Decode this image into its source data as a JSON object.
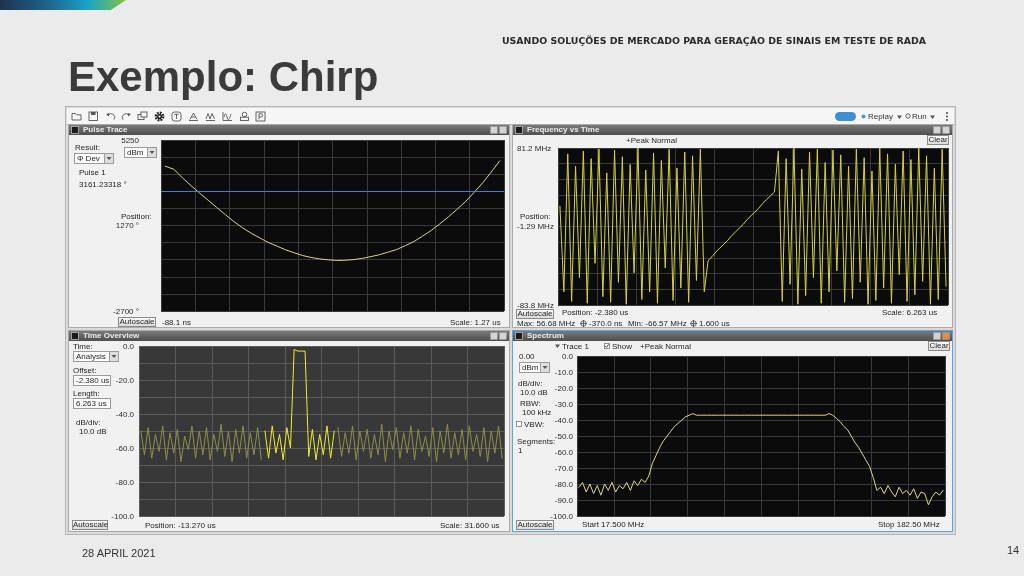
{
  "chart_data": [
    {
      "type": "other",
      "title": "Exemplo: Chirp",
      "subtitle": "USANDO SOLUÇÕES DE MERCADO PARA GERAÇÃO DE SINAIS EM TESTE DE RADA",
      "annotations": [
        "Replay",
        "Run",
        "28 APRIL 2021",
        "14"
      ]
    },
    {
      "type": "line",
      "title": "Pulse Trace",
      "categories": [
        null,
        null,
        null,
        null,
        null,
        null,
        null,
        null,
        null,
        null,
        null,
        null,
        null,
        null,
        null,
        null,
        null,
        null,
        null,
        null,
        null,
        null,
        null,
        null,
        null,
        null,
        null,
        null,
        null,
        null,
        null,
        null,
        null,
        null,
        null,
        null,
        null,
        null,
        null,
        null
      ],
      "series": [
        {
          "color": "#d8d58e",
          "values": [
            4030,
            3890,
            3490,
            3130,
            2780,
            2450,
            2110,
            1780,
            1460,
            1170,
            920,
            700,
            490,
            320,
            150,
            10,
            -120,
            -210,
            -280,
            -320,
            -350,
            -340,
            -310,
            -250,
            -170,
            -80,
            40,
            160,
            340,
            530,
            780,
            1040,
            1350,
            1670,
            2020,
            2380,
            2810,
            3250,
            3750,
            4280
          ]
        }
      ],
      "ylim": [
        -2700,
        5250
      ],
      "yticks": [
        {
          "value": 5250,
          "label": "5250"
        },
        {
          "value": 4455,
          "label": null
        },
        {
          "value": 3660,
          "label": null
        },
        {
          "value": 2865,
          "label": null
        },
        {
          "value": 2070,
          "label": null
        },
        {
          "value": 1270,
          "label": "1270 °"
        },
        {
          "value": 480,
          "label": null
        },
        {
          "value": -315,
          "label": null
        },
        {
          "value": -1110,
          "label": null
        },
        {
          "value": -1905,
          "label": null
        },
        {
          "value": -2700,
          "label": "-2700 °"
        }
      ],
      "grid": true,
      "tick_labels": "y",
      "ref_lines": [
        {
          "axis": "y",
          "value": 2860,
          "color": "#3d7fd9"
        }
      ],
      "annotations": [
        "Result:",
        "Φ Dev",
        "dBm",
        "Pulse 1",
        "3161.23318 °",
        "Position:",
        "Autoscale",
        "-88.1 ns",
        "Scale: 1.27 us"
      ]
    },
    {
      "type": "line",
      "title": "Frequency vs Time",
      "categories": [
        null,
        null,
        null,
        null,
        null,
        null,
        null,
        null,
        null,
        null,
        null,
        null,
        null,
        null,
        null,
        null,
        null,
        null,
        null,
        null,
        null,
        null,
        null,
        null,
        null,
        null,
        null,
        null,
        null,
        null,
        null,
        null,
        null,
        null,
        null,
        null,
        null,
        null,
        null,
        null,
        null,
        null,
        null,
        null,
        null,
        null,
        null,
        null,
        null,
        null,
        null,
        null,
        null,
        null,
        null,
        null,
        null,
        null,
        null,
        null,
        null,
        null,
        null,
        null,
        null,
        null,
        null,
        null,
        null,
        null,
        null,
        null,
        null,
        null,
        null,
        null,
        null,
        null,
        null,
        null,
        null,
        null,
        null,
        null,
        null,
        null,
        null,
        null,
        null,
        null,
        null,
        null,
        null,
        null,
        null,
        null,
        null,
        null,
        null,
        null
      ],
      "series": [
        {
          "color": "#d6d43c",
          "values": [
            20,
            -70,
            75,
            -80,
            62,
            -55,
            78,
            -82,
            70,
            -40,
            80,
            -75,
            55,
            -81,
            79,
            -60,
            72,
            -83,
            64,
            -50,
            81,
            -78,
            58,
            -70,
            76,
            -82,
            68,
            -45,
            80,
            -79,
            60,
            -66,
            77,
            -81,
            73,
            -58,
            80,
            -70,
            -37,
            -33,
            -28,
            -24,
            -20,
            -16,
            -11,
            -7,
            -3,
            1,
            6,
            10,
            14,
            18,
            23,
            27,
            31,
            35,
            78,
            -80,
            70,
            -62,
            81,
            -83,
            59,
            -74,
            77,
            -55,
            80,
            -82,
            66,
            -70,
            79,
            -48,
            74,
            -81,
            62,
            -77,
            80,
            -60,
            71,
            -83,
            57,
            -79,
            81,
            -66,
            75,
            -82,
            64,
            -52,
            78,
            -80,
            69,
            -73,
            81,
            -59,
            73,
            -83,
            60,
            -78,
            80,
            -64
          ]
        }
      ],
      "ylim": [
        -83.8,
        81.2
      ],
      "yticks": [
        {
          "value": 81.2,
          "label": "81.2 MHz"
        },
        {
          "value": 64.7,
          "label": null
        },
        {
          "value": 48.2,
          "label": null
        },
        {
          "value": 31.7,
          "label": null
        },
        {
          "value": 15.2,
          "label": null
        },
        {
          "value": -1.29,
          "label": "-1.29 MHz"
        },
        {
          "value": -17.8,
          "label": null
        },
        {
          "value": -34.3,
          "label": null
        },
        {
          "value": -50.8,
          "label": null
        },
        {
          "value": -67.3,
          "label": null
        },
        {
          "value": -83.8,
          "label": "-83.8 MHz"
        }
      ],
      "grid": true,
      "tick_labels": "y",
      "annotations": [
        "+Peak Normal",
        "Clear",
        "Position:",
        "Autoscale",
        "Position: -2.380 us",
        "Scale: 6.263 us",
        "Max: 56.68 MHz",
        "-370.0 ns",
        "Min: -66.57 MHz",
        "1.600 us"
      ]
    },
    {
      "type": "line",
      "title": "Time Overview",
      "categories": [
        null,
        null,
        null,
        null,
        null,
        null,
        null,
        null,
        null,
        null,
        null,
        null,
        null,
        null,
        null,
        null,
        null,
        null,
        null,
        null,
        null,
        null,
        null,
        null,
        null,
        null,
        null,
        null,
        null,
        null,
        null,
        null,
        null,
        null,
        null,
        null,
        null,
        null,
        null,
        null,
        null,
        null,
        null,
        null,
        null,
        null,
        null,
        null,
        null,
        null,
        null,
        null,
        null,
        null,
        null,
        null,
        null,
        null,
        null,
        null,
        null,
        null,
        null,
        null,
        null,
        null,
        null,
        null,
        null,
        null,
        null,
        null,
        null,
        null,
        null,
        null,
        null,
        null,
        null,
        null,
        null,
        null,
        null,
        null,
        null,
        null,
        null,
        null,
        null,
        null,
        null,
        null,
        null,
        null,
        null,
        null,
        null,
        null,
        null,
        null
      ],
      "series": [
        {
          "color": "#8e8e4e",
          "values": [
            -50,
            -64,
            -48,
            -66,
            -52,
            -62,
            -47,
            -67,
            -51,
            -63,
            -49,
            -68,
            -53,
            -61,
            -47,
            -66,
            -50,
            -64,
            -48,
            -67,
            -52,
            -62,
            -46,
            -65,
            -50,
            -68,
            -49,
            -63,
            -47,
            -66,
            -51,
            -64,
            -48,
            -67,
            null,
            null,
            null,
            null,
            null,
            null,
            null,
            null,
            null,
            null,
            null,
            null,
            null,
            null,
            null,
            null,
            null,
            null,
            null,
            null,
            -48,
            -65,
            -51,
            -63,
            -47,
            -67,
            -50,
            -62,
            -49,
            -66,
            -52,
            -64,
            -46,
            -68,
            -50,
            -61,
            -48,
            -66,
            -51,
            -63,
            -47,
            -67,
            -49,
            -62,
            -53,
            -65,
            -48,
            -68,
            -50,
            -63,
            -46,
            -66,
            -51,
            -64,
            -49,
            -67,
            -47,
            -62,
            -52,
            -65,
            -48,
            -68,
            -50,
            -63,
            -47,
            -66
          ]
        },
        {
          "color": "#eeec2e",
          "values": [
            null,
            null,
            null,
            null,
            null,
            null,
            null,
            null,
            null,
            null,
            null,
            null,
            null,
            null,
            null,
            null,
            null,
            null,
            null,
            null,
            null,
            null,
            null,
            null,
            null,
            null,
            null,
            null,
            null,
            null,
            null,
            null,
            null,
            null,
            -50,
            -66,
            -47,
            -63,
            -52,
            -67,
            -48,
            -60,
            -2,
            -3,
            -3,
            -3,
            -65,
            -49,
            -67,
            -52,
            -64,
            -47,
            -66,
            -50,
            null,
            null,
            null,
            null,
            null,
            null,
            null,
            null,
            null,
            null,
            null,
            null,
            null,
            null,
            null,
            null,
            null,
            null,
            null,
            null,
            null,
            null,
            null,
            null,
            null,
            null,
            null,
            null,
            null,
            null,
            null,
            null,
            null,
            null,
            null,
            null,
            null,
            null,
            null,
            null,
            null,
            null,
            null,
            null,
            null,
            null
          ]
        }
      ],
      "ylim": [
        -100,
        0
      ],
      "yticks": [
        {
          "value": 0,
          "label": "0.0"
        },
        {
          "value": -10,
          "label": null
        },
        {
          "value": -20,
          "label": "-20.0"
        },
        {
          "value": -30,
          "label": null
        },
        {
          "value": -40,
          "label": "-40.0"
        },
        {
          "value": -50,
          "label": null
        },
        {
          "value": -60,
          "label": "-60.0"
        },
        {
          "value": -70,
          "label": null
        },
        {
          "value": -80,
          "label": "-80.0"
        },
        {
          "value": -90,
          "label": null
        },
        {
          "value": -100,
          "label": "-100.0"
        }
      ],
      "grid": true,
      "tick_labels": "y",
      "annotations": [
        "Time:",
        "Analysis",
        "Offset:",
        "-2.380 us",
        "Length:",
        "6.263 us",
        "dB/div:",
        "10.0 dB",
        "Autoscale",
        "Position: -13.270 us",
        "Scale: 31.600 us"
      ]
    },
    {
      "type": "line",
      "title": "Spectrum",
      "categories": [
        null,
        null,
        null,
        null,
        null,
        null,
        null,
        null,
        null,
        null,
        null,
        null,
        null,
        null,
        null,
        null,
        null,
        null,
        null,
        null,
        null,
        null,
        null,
        null,
        null,
        null,
        null,
        null,
        null,
        null,
        null,
        null,
        null,
        null,
        null,
        null,
        null,
        null,
        null,
        null,
        null,
        null,
        null,
        null,
        null,
        null,
        null,
        null,
        null,
        null,
        null,
        null,
        null,
        null,
        null,
        null,
        null,
        null,
        null,
        null,
        null,
        null,
        null,
        null,
        null,
        null,
        null,
        null,
        null,
        null,
        null,
        null,
        null,
        null,
        null,
        null,
        null,
        null,
        null,
        null,
        null,
        null,
        null,
        null,
        null,
        null,
        null,
        null,
        null,
        null,
        null,
        null,
        null,
        null,
        null,
        null,
        null,
        null,
        null,
        null
      ],
      "series": [
        {
          "color": "#d9d88a",
          "values": [
            -82,
            -79,
            -85,
            -80,
            -86,
            -81,
            -87,
            -80,
            -84,
            -79,
            -85,
            -81,
            -83,
            -79,
            -84,
            -78,
            -81,
            -77,
            -79,
            -75,
            -67,
            -62,
            -57,
            -53,
            -50,
            -47,
            -44,
            -42,
            -40,
            -38,
            -37,
            -36,
            -37,
            -37,
            -37,
            -37,
            -37,
            -37,
            -37,
            -37,
            -37,
            -37,
            -37,
            -37,
            -37,
            -37,
            -37,
            -37,
            -37,
            -37,
            -37,
            -37,
            -37,
            -37,
            -37,
            -37,
            -37,
            -37,
            -37,
            -37,
            -37,
            -37,
            -37,
            -37,
            -37,
            -37,
            -37,
            -37,
            -36,
            -37,
            -39,
            -41,
            -44,
            -46,
            -50,
            -54,
            -57,
            -61,
            -65,
            -69,
            -76,
            -84,
            -82,
            -86,
            -81,
            -85,
            -88,
            -82,
            -86,
            -84,
            -87,
            -83,
            -89,
            -85,
            -86,
            -93,
            -88,
            -85,
            -87,
            -84
          ]
        }
      ],
      "ylim": [
        -100,
        0
      ],
      "yticks": [
        {
          "value": 0,
          "label": "0.0"
        },
        {
          "value": -10,
          "label": "-10.0"
        },
        {
          "value": -20,
          "label": "-20.0"
        },
        {
          "value": -30,
          "label": "-30.0"
        },
        {
          "value": -40,
          "label": "-40.0"
        },
        {
          "value": -50,
          "label": "-50.0"
        },
        {
          "value": -60,
          "label": "-60.0"
        },
        {
          "value": -70,
          "label": "-70.0"
        },
        {
          "value": -80,
          "label": "-80.0"
        },
        {
          "value": -90,
          "label": "-90.0"
        },
        {
          "value": -100,
          "label": "-100.0"
        }
      ],
      "grid": true,
      "tick_labels": "y",
      "annotations": [
        "Trace 1",
        "Show",
        "+Peak Normal",
        "Clear",
        "0.00",
        "dBm",
        "dB/div:",
        "10.0 dB",
        "RBW:",
        "100 kHz",
        "VBW:",
        "Segments:",
        "1",
        "Autoscale",
        "Start 17.500 MHz",
        "Stop 182.50 MHz"
      ]
    }
  ]
}
